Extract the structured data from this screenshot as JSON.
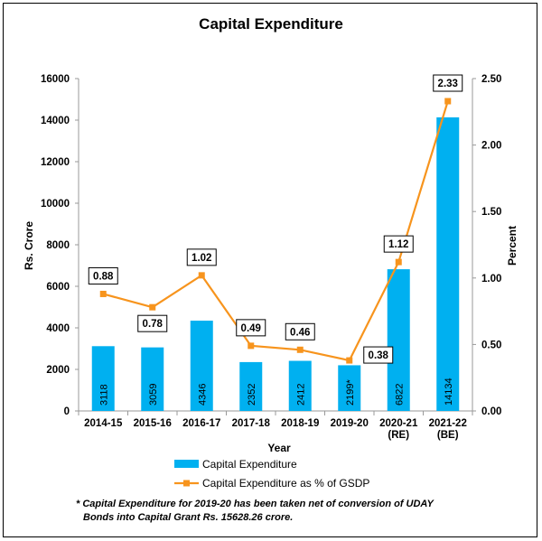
{
  "chart_data": {
    "type": "bar",
    "title": "Capital Expenditure",
    "xlabel": "Year",
    "ylabel": "Rs. Crore",
    "y2label": "Percent",
    "categories": [
      [
        "2014-15"
      ],
      [
        "2015-16"
      ],
      [
        "2016-17"
      ],
      [
        "2017-18"
      ],
      [
        "2018-19"
      ],
      [
        "2019-20"
      ],
      [
        "2020-21",
        "(RE)"
      ],
      [
        "2021-22",
        "(BE)"
      ]
    ],
    "ylim": [
      0,
      16000
    ],
    "yticks": [
      "0",
      "2000",
      "4000",
      "6000",
      "8000",
      "10000",
      "12000",
      "14000",
      "16000"
    ],
    "y2lim": [
      0,
      2.5
    ],
    "y2ticks": [
      "0.00",
      "0.50",
      "1.00",
      "1.50",
      "2.00",
      "2.50"
    ],
    "series": [
      {
        "name": "Capital Expenditure",
        "kind": "bar",
        "color": "#00b0f0",
        "values": [
          3118,
          3059,
          4346,
          2352,
          2412,
          2199,
          6822,
          14134
        ],
        "labels": [
          "3118",
          "3059",
          "4346",
          "2352",
          "2412",
          "2199*",
          "6822",
          "14134"
        ]
      },
      {
        "name": "Capital Expenditure as % of GSDP",
        "kind": "line",
        "axis": "right",
        "color": "#f7941d",
        "values": [
          0.88,
          0.78,
          1.02,
          0.49,
          0.46,
          0.38,
          1.12,
          2.33
        ],
        "labels": [
          "0.88",
          "0.78",
          "1.02",
          "0.49",
          "0.46",
          "0.38",
          "1.12",
          "2.33"
        ]
      }
    ],
    "legend": "bottom",
    "footnote": [
      "* Capital Expenditure for 2019-20 has been taken net of conversion of UDAY",
      "Bonds into Capital Grant Rs. 15628.26 crore."
    ]
  }
}
